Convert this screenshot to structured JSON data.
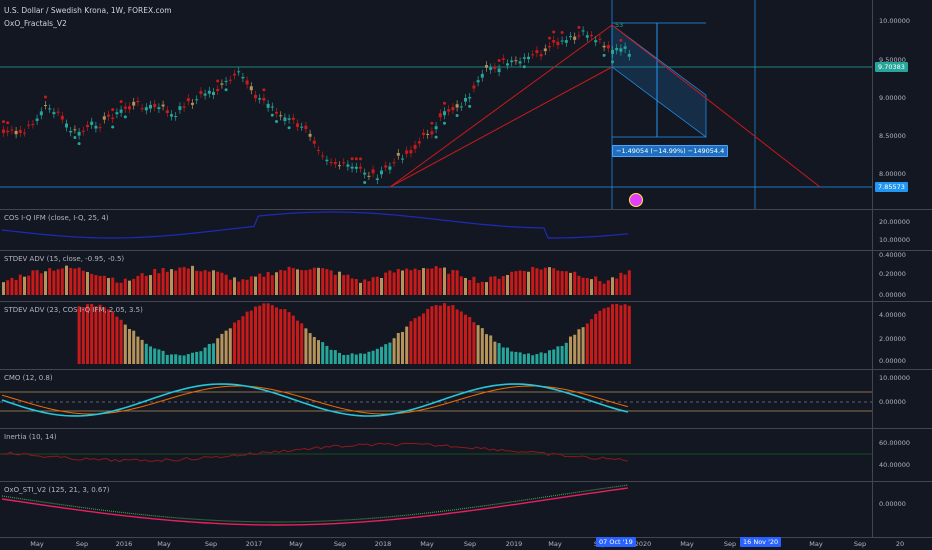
{
  "header": {
    "symbol_line": "U.S. Dollar / Swedish Krona, 1W, FOREX.com",
    "indicator": "OxO_Fractals_V2"
  },
  "main_axis": {
    "ticks": [
      "10.00000",
      "9.50000",
      "9.00000",
      "8.50000",
      "8.00000"
    ],
    "current_price": "9.70383",
    "level_low": "7.85573",
    "measure_top_label": "53"
  },
  "measure_box": {
    "label": "−1.49054 (−14.99%) −149054.4"
  },
  "panes": [
    {
      "label": "COS I-Q IFM (close, I-Q, 25, 4)",
      "ticks": [
        "20.00000",
        "10.00000"
      ]
    },
    {
      "label": "STDEV ADV (15, close, -0.95, -0.5)",
      "ticks": [
        "0.40000",
        "0.20000",
        "0.00000"
      ]
    },
    {
      "label": "STDEV ADV (23, COS I-Q IFM, 2.05, 3.5)",
      "ticks": [
        "4.00000",
        "2.00000",
        "0.00000"
      ]
    },
    {
      "label": "CMO (12, 0.8)",
      "ticks": [
        "10.00000",
        "0.00000"
      ]
    },
    {
      "label": "Inertia (10, 14)",
      "ticks": [
        "60.00000",
        "40.00000"
      ]
    },
    {
      "label": "OxO_STI_V2 (125, 21, 3, 0.67)",
      "ticks": [
        "0.00000"
      ]
    }
  ],
  "x_axis": {
    "labels": [
      "May",
      "Sep",
      "2016",
      "May",
      "Sep",
      "2017",
      "May",
      "Sep",
      "2018",
      "May",
      "Sep",
      "2019",
      "May",
      "Sep",
      "2020",
      "May",
      "Sep",
      "2021",
      "May",
      "Sep",
      "20"
    ],
    "date_tag": "07 Oct '19",
    "date_tag2": "16 Nov '20"
  },
  "colors": {
    "bg": "#131722",
    "red": "#c91a1a",
    "teal": "#26a69a",
    "gold": "#b5935a",
    "blue": "#2196f3",
    "navy": "#1e2bb8"
  }
}
